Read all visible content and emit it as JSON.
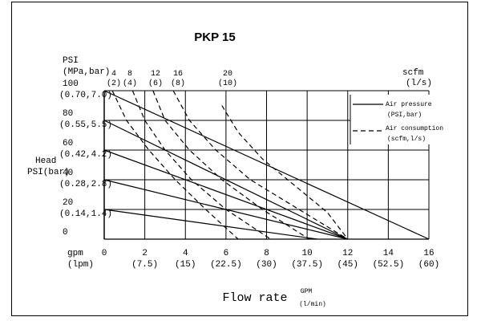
{
  "chart_data": {
    "type": "line",
    "title": "PKP 15",
    "y_axis": {
      "unit_lines": [
        "PSI",
        "(MPa,bar)"
      ],
      "side_label_lines": [
        "Head",
        "PSI(bar)"
      ],
      "range": [
        0,
        100
      ],
      "ticks": [
        {
          "value": 100,
          "label": "100",
          "sub": "(0.70,7.0)"
        },
        {
          "value": 80,
          "label": "80",
          "sub": "(0.55,5.5)"
        },
        {
          "value": 60,
          "label": "60",
          "sub": "(0.42,4.2)"
        },
        {
          "value": 40,
          "label": "40",
          "sub": "(0.28,2.8)"
        },
        {
          "value": 20,
          "label": "20",
          "sub": "(0.14,1.4)"
        },
        {
          "value": 0,
          "label": "0",
          "sub": ""
        }
      ]
    },
    "x_axis": {
      "unit_lines": [
        "gpm",
        "(lpm)"
      ],
      "range": [
        0,
        16
      ],
      "ticks": [
        {
          "value": 0,
          "label": "0",
          "sub": ""
        },
        {
          "value": 2,
          "label": "2",
          "sub": "(7.5)"
        },
        {
          "value": 4,
          "label": "4",
          "sub": "(15)"
        },
        {
          "value": 6,
          "label": "6",
          "sub": "(22.5)"
        },
        {
          "value": 8,
          "label": "8",
          "sub": "(30)"
        },
        {
          "value": 10,
          "label": "10",
          "sub": "(37.5)"
        },
        {
          "value": 12,
          "label": "12",
          "sub": "(45)"
        },
        {
          "value": 14,
          "label": "14",
          "sub": "(52.5)"
        },
        {
          "value": 16,
          "label": "16",
          "sub": "(60)"
        }
      ],
      "title": "Flow rate",
      "title_unit_top": "GPM",
      "title_unit_bottom": "(l/min)"
    },
    "scfm_axis": {
      "unit_lines": [
        "scfm",
        "(l/s)"
      ],
      "ticks": [
        {
          "label": "4",
          "sub": "(2)"
        },
        {
          "label": "8",
          "sub": "(4)"
        },
        {
          "label": "12",
          "sub": "(6)"
        },
        {
          "label": "16",
          "sub": "(8)"
        },
        {
          "label": "20",
          "sub": "(10)"
        }
      ]
    },
    "grid": true,
    "legend": {
      "position": "right",
      "items": [
        {
          "style": "solid",
          "lines": [
            "Air pressure",
            "(PSI,bar)"
          ]
        },
        {
          "style": "dashed",
          "lines": [
            "Air consumption",
            "(scfm,l/s)"
          ]
        }
      ]
    },
    "series": [
      {
        "style": "solid",
        "x": [
          0,
          16
        ],
        "y": [
          100,
          0
        ]
      },
      {
        "style": "solid",
        "x": [
          0,
          12
        ],
        "y": [
          80,
          0
        ]
      },
      {
        "style": "solid",
        "x": [
          0,
          12
        ],
        "y": [
          60,
          0
        ]
      },
      {
        "style": "solid",
        "x": [
          0,
          12
        ],
        "y": [
          40,
          0
        ]
      },
      {
        "style": "solid",
        "x": [
          0,
          10.5
        ],
        "y": [
          20,
          0
        ]
      },
      {
        "style": "dashed",
        "x": [
          0.4,
          1.1,
          2.2,
          3.5,
          5.0,
          6.6
        ],
        "y": [
          100,
          80,
          60,
          40,
          20,
          0
        ]
      },
      {
        "style": "dashed",
        "x": [
          1.4,
          2.0,
          3.0,
          4.3,
          6.0,
          8.2
        ],
        "y": [
          100,
          80,
          60,
          40,
          20,
          0
        ]
      },
      {
        "style": "dashed",
        "x": [
          2.4,
          3.0,
          4.2,
          5.8,
          7.8,
          10.1
        ],
        "y": [
          100,
          80,
          60,
          40,
          20,
          0
        ]
      },
      {
        "style": "dashed",
        "x": [
          3.4,
          4.2,
          5.5,
          7.2,
          9.6,
          12.0
        ],
        "y": [
          100,
          80,
          60,
          40,
          20,
          0
        ]
      },
      {
        "style": "dashed",
        "x": [
          5.8,
          6.6,
          7.8,
          9.4,
          11.0,
          12.0
        ],
        "y": [
          90,
          72,
          54,
          36,
          18,
          0
        ]
      }
    ]
  }
}
